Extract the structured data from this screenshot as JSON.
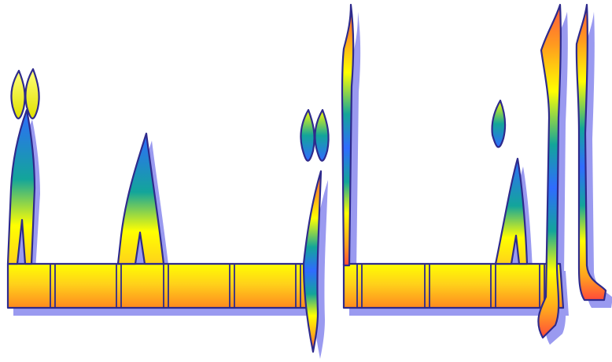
{
  "artwork": {
    "kind": "decorative-calligraphy",
    "colors": {
      "outline": "#2e2a8c",
      "shadow": "#9a9af0",
      "gradient": [
        "#ff5a3c",
        "#ffa21f",
        "#ffff00",
        "#13a59a",
        "#2f6bff",
        "#1f86a0",
        "#ffff00",
        "#ff9a1f",
        "#ff4a3a"
      ]
    }
  }
}
